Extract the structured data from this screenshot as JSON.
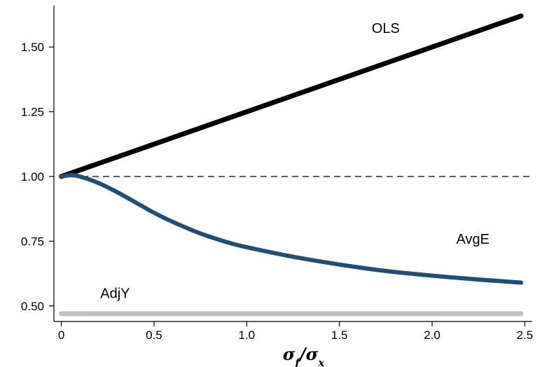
{
  "chart_data": {
    "type": "line",
    "title": "",
    "xlabel": {
      "numerator": "σ",
      "numerator_sub": "f",
      "slash": "/",
      "denominator": "σ",
      "denominator_sub": "x"
    },
    "ylabel": "",
    "xlim": [
      -0.04,
      2.54
    ],
    "ylim": [
      0.44,
      1.66
    ],
    "xticks": [
      0,
      0.5,
      1.0,
      1.5,
      2.0,
      2.5
    ],
    "xtick_labels": [
      "0",
      "0.5",
      "1.0",
      "1.5",
      "2.0",
      "2.5"
    ],
    "yticks": [
      0.5,
      0.75,
      1.0,
      1.25,
      1.5
    ],
    "ytick_labels": [
      "0.50",
      "0.75",
      "1.00",
      "1.25",
      "1.50"
    ],
    "grid": false,
    "legend": "none",
    "reference_line": {
      "y": 1.0,
      "style": "dashed",
      "color": "#000000"
    },
    "series": [
      {
        "name": "OLS",
        "color": "#000000",
        "x": [
          0,
          0.25,
          0.5,
          0.75,
          1.0,
          1.25,
          1.5,
          1.75,
          2.0,
          2.25,
          2.48
        ],
        "y": [
          1.0,
          1.0625,
          1.125,
          1.1875,
          1.25,
          1.3125,
          1.375,
          1.4375,
          1.5,
          1.5625,
          1.62
        ]
      },
      {
        "name": "AvgE",
        "color": "#1f4e79",
        "x": [
          0,
          0.05,
          0.1,
          0.2,
          0.3,
          0.4,
          0.5,
          0.6,
          0.75,
          0.9,
          1.0,
          1.25,
          1.5,
          1.75,
          2.0,
          2.25,
          2.48
        ],
        "y": [
          1.0,
          1.005,
          1.0,
          0.975,
          0.94,
          0.9,
          0.86,
          0.825,
          0.78,
          0.745,
          0.727,
          0.69,
          0.66,
          0.635,
          0.617,
          0.602,
          0.59
        ]
      },
      {
        "name": "AdjY",
        "color": "#c0c0c0",
        "x": [
          0,
          2.48
        ],
        "y": [
          0.47,
          0.47
        ]
      }
    ]
  }
}
